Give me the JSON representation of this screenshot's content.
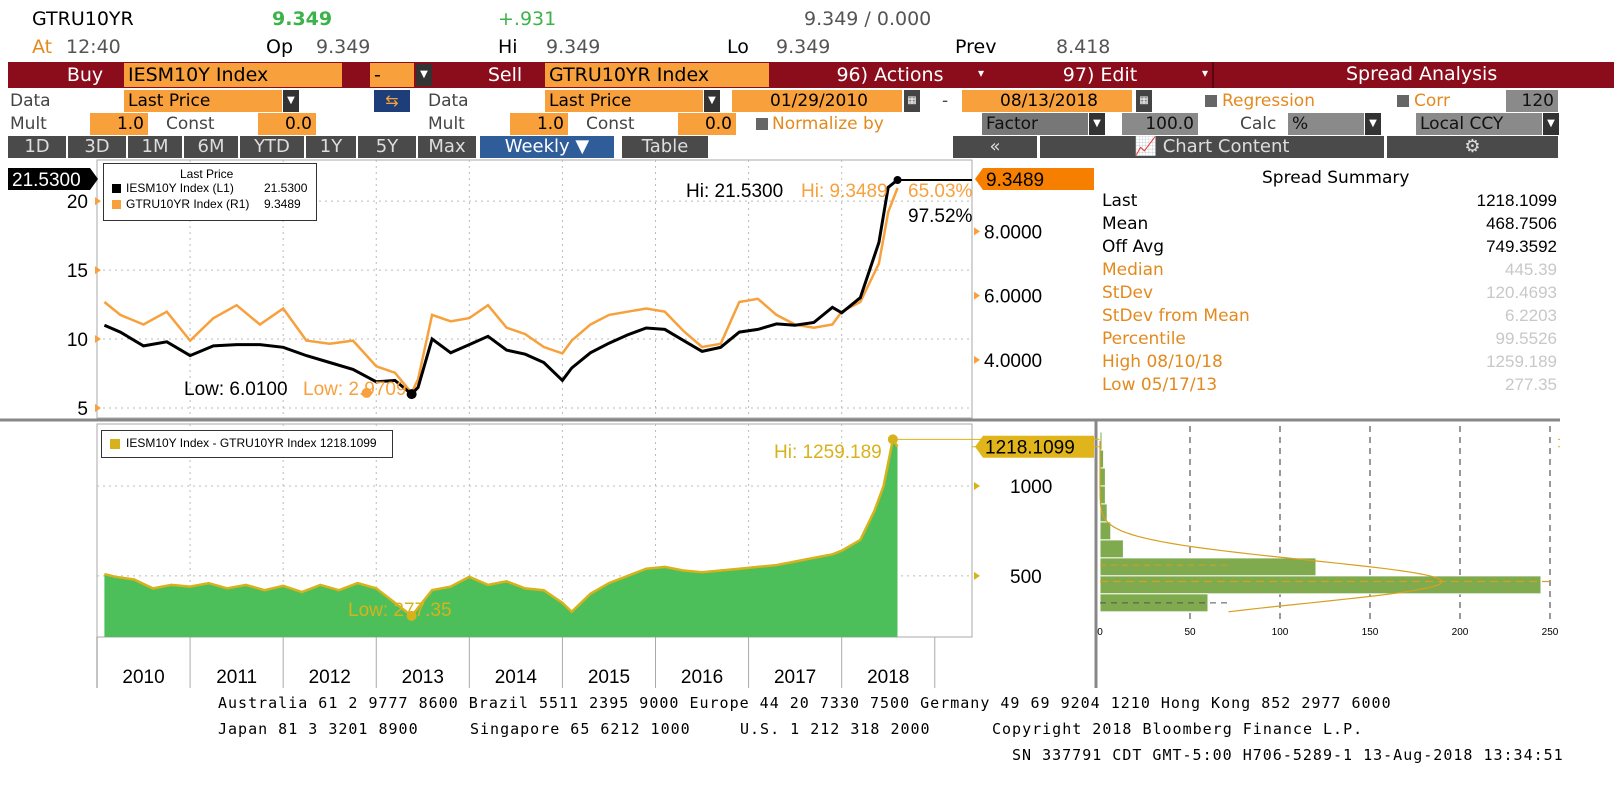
{
  "quote": {
    "ticker": "GTRU10YR",
    "last": "9.349",
    "change": "+.931",
    "bidask": "9.349 / 0.000",
    "at_label": "At",
    "at_time": "12:40",
    "op_label": "Op",
    "op_value": "9.349",
    "hi_label": "Hi",
    "hi_value": "9.349",
    "lo_label": "Lo",
    "lo_value": "9.349",
    "prev_label": "Prev",
    "prev_value": "8.418"
  },
  "controls": {
    "buy_label": "Buy",
    "buy_security": "IESM10Y Index",
    "operator": "-",
    "sell_label": "Sell",
    "sell_security": "GTRU10YR Index",
    "actions_label": "96) Actions",
    "edit_label": "97) Edit",
    "spread_analysis_label": "Spread Analysis",
    "data_label": "Data",
    "data_value_1": "Last Price",
    "data_value_2": "Last Price",
    "start_date": "01/29/2010",
    "date_sep": "-",
    "end_date": "08/13/2018",
    "regression_label": "Regression",
    "corr_label": "Corr",
    "corr_value": "120",
    "mult_label": "Mult",
    "mult_value_1": "1.0",
    "const_label": "Const",
    "const_value_1": "0.0",
    "mult_value_2": "1.0",
    "const_value_2": "0.0",
    "normalize_label": "Normalize by",
    "factor_label": "Factor",
    "factor_value": "100.0",
    "calc_label": "Calc",
    "calc_value": "%",
    "ccy_value": "Local CCY"
  },
  "tabs": {
    "ranges": [
      "1D",
      "3D",
      "1M",
      "6M",
      "YTD",
      "1Y",
      "5Y",
      "Max"
    ],
    "period": "Weekly",
    "table": "Table",
    "collapse": "«",
    "chart_content": "Chart Content"
  },
  "summary": {
    "title": "Spread Summary",
    "rows": [
      {
        "k": "Last",
        "v": "1218.1099"
      },
      {
        "k": "Mean",
        "v": "468.7506"
      },
      {
        "k": "Off Avg",
        "v": "749.3592"
      },
      {
        "k": "Median",
        "v": "445.39"
      },
      {
        "k": "StDev",
        "v": "120.4693"
      },
      {
        "k": "StDev from Mean",
        "v": "6.2203"
      },
      {
        "k": "Percentile",
        "v": "99.5526"
      },
      {
        "k": "High 08/10/18",
        "v": "1259.189"
      },
      {
        "k": "Low 05/17/13",
        "v": "277.35"
      }
    ]
  },
  "footer": {
    "line1": "Australia 61 2 9777 8600 Brazil 5511 2395 9000 Europe 44 20 7330 7500 Germany 49 69 9204 1210 Hong Kong 852 2977 6000",
    "line2a": "Japan 81 3 3201 8900",
    "line2b": "Singapore 65 6212 1000",
    "line2c": "U.S. 1 212 318 2000",
    "line2d": "Copyright 2018 Bloomberg Finance L.P.",
    "line3": "SN 337791 CDT  GMT-5:00 H706-5289-1 13-Aug-2018 13:34:51"
  },
  "colors": {
    "black_series": "#000000",
    "orange_series": "#f7a03c",
    "spread_fill": "#4cbf5a",
    "spread_line": "#d8b21c",
    "hist_bar": "#7faa4e"
  },
  "chart_data": [
    {
      "type": "line",
      "legend_title": "Last Price",
      "series": [
        {
          "name": "IESM10Y Index (L1)",
          "last_label": "21.5300",
          "axis": "left",
          "x": [
            2010.08,
            2010.25,
            2010.5,
            2010.75,
            2011.0,
            2011.25,
            2011.5,
            2011.75,
            2012.0,
            2012.25,
            2012.5,
            2012.75,
            2013.0,
            2013.2,
            2013.38,
            2013.45,
            2013.6,
            2013.8,
            2014.0,
            2014.2,
            2014.4,
            2014.6,
            2014.8,
            2015.0,
            2015.1,
            2015.3,
            2015.5,
            2015.7,
            2015.9,
            2016.1,
            2016.3,
            2016.5,
            2016.7,
            2016.9,
            2017.1,
            2017.3,
            2017.5,
            2017.7,
            2017.9,
            2018.0,
            2018.2,
            2018.4,
            2018.5,
            2018.6
          ],
          "values": [
            11.0,
            10.5,
            9.5,
            9.8,
            8.8,
            9.5,
            9.6,
            9.6,
            9.4,
            8.8,
            8.3,
            7.8,
            6.9,
            7.0,
            6.01,
            6.5,
            10.0,
            9.0,
            9.6,
            10.2,
            9.2,
            8.9,
            8.3,
            7.0,
            7.9,
            9.0,
            9.7,
            10.3,
            10.8,
            10.7,
            9.9,
            9.1,
            9.4,
            10.5,
            10.7,
            11.1,
            11.0,
            11.2,
            12.3,
            11.9,
            13.0,
            17.0,
            21.0,
            21.53
          ],
          "hi_label": "Hi: 21.5300",
          "low_label": "Low: 6.0100"
        },
        {
          "name": "GTRU10YR Index (R1)",
          "last_label": "9.3489",
          "axis": "right",
          "x": [
            2010.08,
            2010.25,
            2010.5,
            2010.75,
            2011.0,
            2011.25,
            2011.5,
            2011.75,
            2012.0,
            2012.25,
            2012.5,
            2012.75,
            2013.0,
            2013.2,
            2013.38,
            2013.45,
            2013.6,
            2013.8,
            2014.0,
            2014.2,
            2014.4,
            2014.6,
            2014.8,
            2015.0,
            2015.1,
            2015.3,
            2015.5,
            2015.7,
            2015.9,
            2016.1,
            2016.3,
            2016.5,
            2016.7,
            2016.9,
            2017.1,
            2017.3,
            2017.5,
            2017.7,
            2017.9,
            2018.0,
            2018.2,
            2018.4,
            2018.5,
            2018.6
          ],
          "values": [
            5.8,
            5.4,
            5.1,
            5.5,
            4.6,
            5.3,
            5.7,
            5.1,
            5.6,
            4.6,
            4.5,
            4.6,
            3.8,
            3.6,
            2.97,
            3.4,
            5.4,
            5.2,
            5.3,
            5.7,
            5.0,
            4.8,
            4.4,
            4.2,
            4.6,
            5.1,
            5.4,
            5.5,
            5.6,
            5.5,
            4.9,
            4.4,
            4.5,
            5.8,
            5.9,
            5.4,
            5.1,
            5.0,
            5.1,
            5.5,
            5.8,
            7.0,
            8.6,
            9.35
          ],
          "hi_label": "Hi: 9.3489",
          "low_label": "Low: 2.9709",
          "hi_pct": "65.03%"
        }
      ],
      "annotation": "97.52%",
      "left_ticks": [
        "20",
        "15",
        "10",
        "5"
      ],
      "left_range": [
        5,
        21.53
      ],
      "right_ticks": [
        "8.0000",
        "6.0000",
        "4.0000"
      ],
      "right_range": [
        2.5,
        9.6
      ]
    },
    {
      "type": "area",
      "series": [
        {
          "name": "IESM10Y Index - GTRU10YR Index 1218.1099",
          "last_label": "1218.1099",
          "x": [
            2010.08,
            2010.2,
            2010.4,
            2010.6,
            2010.8,
            2011.0,
            2011.2,
            2011.4,
            2011.6,
            2011.8,
            2012.0,
            2012.2,
            2012.4,
            2012.6,
            2012.8,
            2013.0,
            2013.2,
            2013.38,
            2013.6,
            2013.8,
            2014.0,
            2014.2,
            2014.4,
            2014.6,
            2014.8,
            2015.0,
            2015.1,
            2015.3,
            2015.5,
            2015.7,
            2015.9,
            2016.1,
            2016.3,
            2016.5,
            2016.7,
            2016.9,
            2017.1,
            2017.3,
            2017.5,
            2017.7,
            2017.9,
            2018.0,
            2018.2,
            2018.35,
            2018.45,
            2018.55,
            2018.6
          ],
          "values": [
            510,
            495,
            480,
            430,
            450,
            440,
            460,
            430,
            450,
            420,
            445,
            410,
            450,
            420,
            460,
            430,
            350,
            277.35,
            420,
            440,
            495,
            450,
            470,
            430,
            420,
            350,
            300,
            400,
            460,
            500,
            540,
            550,
            530,
            520,
            530,
            540,
            550,
            560,
            580,
            600,
            620,
            640,
            700,
            860,
            1000,
            1259.189,
            1218.11
          ],
          "hi_label": "Hi: 1259.189",
          "low_label": "Low: 277.35"
        }
      ],
      "y_ticks": [
        "1000",
        "500"
      ],
      "y_range": [
        160,
        1300
      ]
    },
    {
      "type": "bar",
      "orientation": "horizontal",
      "bin_centers": [
        1250,
        1150,
        1050,
        950,
        850,
        750,
        650,
        550,
        450,
        350
      ],
      "counts": [
        1,
        2,
        3,
        3,
        4,
        6,
        13,
        120,
        245,
        60
      ],
      "x_ticks": [
        "0",
        "50",
        "100",
        "150",
        "200",
        "250"
      ],
      "x_range": [
        0,
        250
      ]
    }
  ],
  "axis_years": [
    "2010",
    "2011",
    "2012",
    "2013",
    "2014",
    "2015",
    "2016",
    "2017",
    "2018"
  ]
}
